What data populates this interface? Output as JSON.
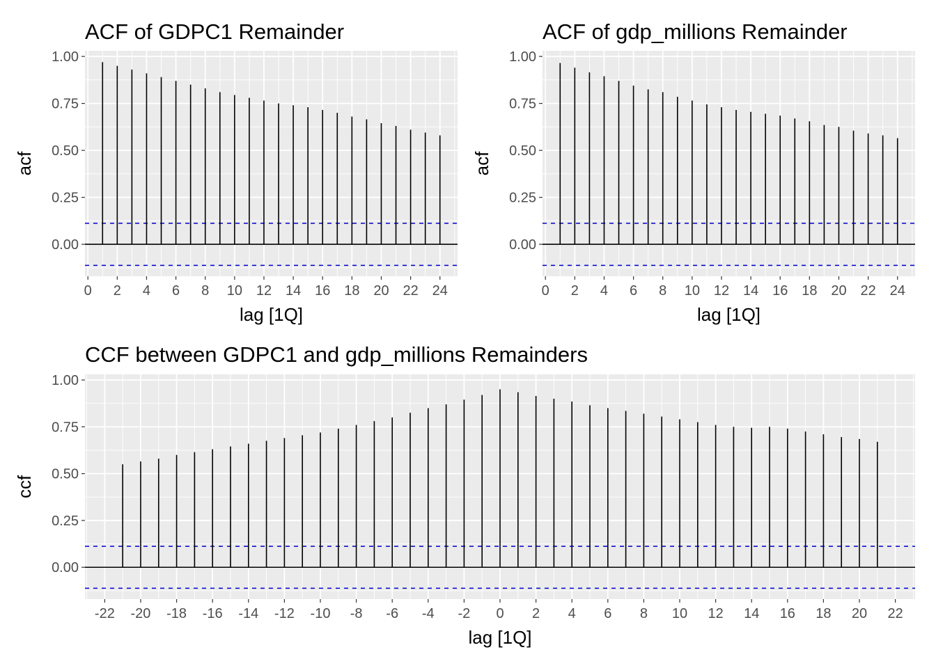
{
  "colors": {
    "panel_background": "#ebebeb",
    "grid_major": "#ffffff",
    "bar": "#000000",
    "zero_line": "#000000",
    "confidence_band": "#0000cc",
    "tick_text": "#4d4d4d"
  },
  "chart_data": [
    {
      "type": "bar",
      "subtype": "correlogram",
      "title": "ACF of GDPC1 Remainder",
      "xlabel": "lag [1Q]",
      "ylabel": "acf",
      "xlim": [
        -0.2,
        25.2
      ],
      "ylim": [
        -0.17,
        1.03
      ],
      "xticks": [
        0,
        2,
        4,
        6,
        8,
        10,
        12,
        14,
        16,
        18,
        20,
        22,
        24
      ],
      "yticks": [
        0.0,
        0.25,
        0.5,
        0.75,
        1.0
      ],
      "ytick_labels": [
        "0.00",
        "0.25",
        "0.50",
        "0.75",
        "1.00"
      ],
      "confidence_band": [
        -0.112,
        0.112
      ],
      "grid": true,
      "lags": [
        1,
        2,
        3,
        4,
        5,
        6,
        7,
        8,
        9,
        10,
        11,
        12,
        13,
        14,
        15,
        16,
        17,
        18,
        19,
        20,
        21,
        22,
        23,
        24
      ],
      "values": [
        0.97,
        0.95,
        0.93,
        0.91,
        0.89,
        0.87,
        0.85,
        0.83,
        0.81,
        0.795,
        0.78,
        0.765,
        0.75,
        0.74,
        0.73,
        0.715,
        0.7,
        0.68,
        0.665,
        0.645,
        0.63,
        0.61,
        0.595,
        0.58
      ]
    },
    {
      "type": "bar",
      "subtype": "correlogram",
      "title": "ACF of gdp_millions Remainder",
      "xlabel": "lag [1Q]",
      "ylabel": "acf",
      "xlim": [
        -0.2,
        25.2
      ],
      "ylim": [
        -0.17,
        1.03
      ],
      "xticks": [
        0,
        2,
        4,
        6,
        8,
        10,
        12,
        14,
        16,
        18,
        20,
        22,
        24
      ],
      "yticks": [
        0.0,
        0.25,
        0.5,
        0.75,
        1.0
      ],
      "ytick_labels": [
        "0.00",
        "0.25",
        "0.50",
        "0.75",
        "1.00"
      ],
      "confidence_band": [
        -0.112,
        0.112
      ],
      "grid": true,
      "lags": [
        1,
        2,
        3,
        4,
        5,
        6,
        7,
        8,
        9,
        10,
        11,
        12,
        13,
        14,
        15,
        16,
        17,
        18,
        19,
        20,
        21,
        22,
        23,
        24
      ],
      "values": [
        0.965,
        0.94,
        0.915,
        0.895,
        0.87,
        0.845,
        0.825,
        0.81,
        0.785,
        0.765,
        0.745,
        0.73,
        0.715,
        0.705,
        0.695,
        0.685,
        0.67,
        0.655,
        0.635,
        0.625,
        0.605,
        0.59,
        0.58,
        0.565
      ]
    },
    {
      "type": "bar",
      "subtype": "correlogram",
      "title": "CCF between GDPC1 and gdp_millions Remainders",
      "xlabel": "lag [1Q]",
      "ylabel": "ccf",
      "xlim": [
        -23.1,
        23.1
      ],
      "ylim": [
        -0.17,
        1.03
      ],
      "xticks": [
        -22,
        -20,
        -18,
        -16,
        -14,
        -12,
        -10,
        -8,
        -6,
        -4,
        -2,
        0,
        2,
        4,
        6,
        8,
        10,
        12,
        14,
        16,
        18,
        20,
        22
      ],
      "yticks": [
        0.0,
        0.25,
        0.5,
        0.75,
        1.0
      ],
      "ytick_labels": [
        "0.00",
        "0.25",
        "0.50",
        "0.75",
        "1.00"
      ],
      "confidence_band": [
        -0.112,
        0.112
      ],
      "grid": true,
      "lags": [
        -21,
        -20,
        -19,
        -18,
        -17,
        -16,
        -15,
        -14,
        -13,
        -12,
        -11,
        -10,
        -9,
        -8,
        -7,
        -6,
        -5,
        -4,
        -3,
        -2,
        -1,
        0,
        1,
        2,
        3,
        4,
        5,
        6,
        7,
        8,
        9,
        10,
        11,
        12,
        13,
        14,
        15,
        16,
        17,
        18,
        19,
        20,
        21
      ],
      "values": [
        0.55,
        0.565,
        0.58,
        0.6,
        0.615,
        0.63,
        0.645,
        0.66,
        0.675,
        0.69,
        0.705,
        0.72,
        0.74,
        0.76,
        0.78,
        0.8,
        0.825,
        0.85,
        0.87,
        0.895,
        0.92,
        0.95,
        0.935,
        0.915,
        0.9,
        0.885,
        0.865,
        0.85,
        0.835,
        0.82,
        0.805,
        0.79,
        0.775,
        0.76,
        0.75,
        0.745,
        0.75,
        0.74,
        0.725,
        0.71,
        0.695,
        0.685,
        0.67
      ]
    }
  ]
}
